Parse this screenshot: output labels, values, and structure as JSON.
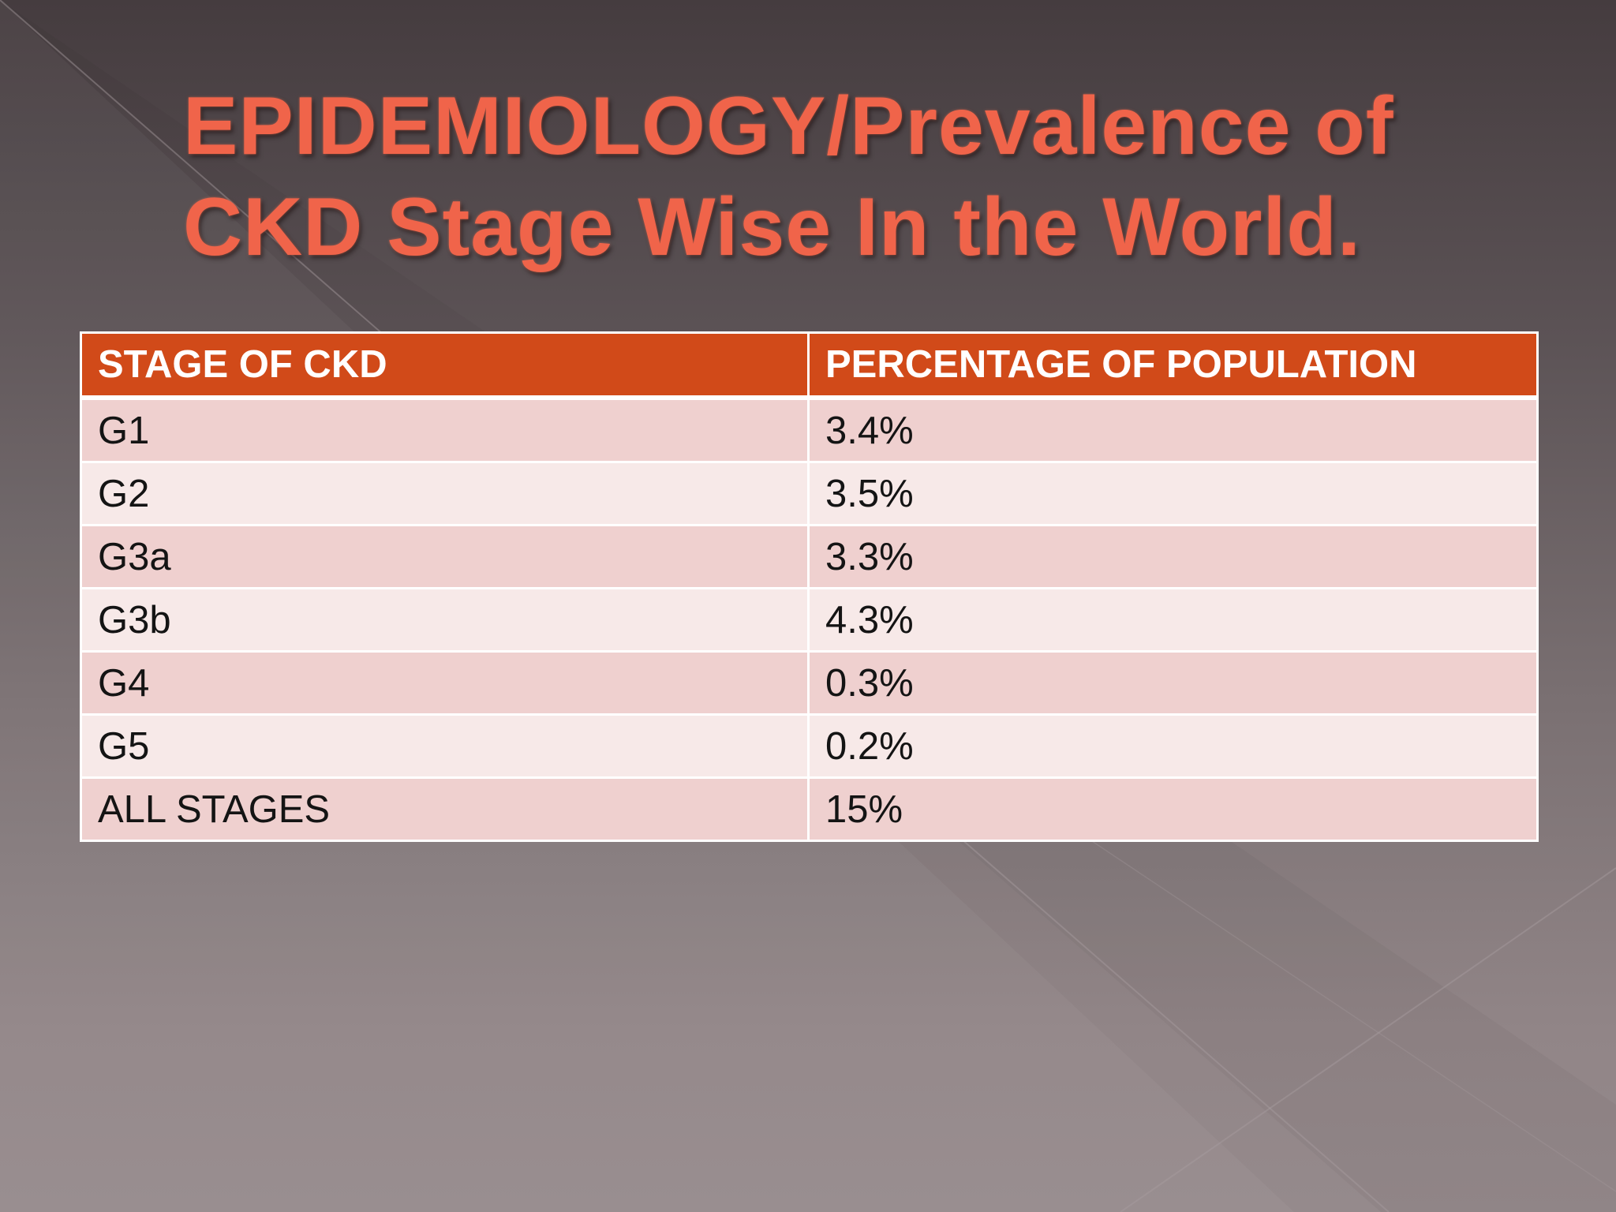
{
  "slide": {
    "title_line1": "EPIDEMIOLOGY/Prevalence of",
    "title_line2": "CKD Stage Wise In the World.",
    "colors": {
      "title": "#f0644a",
      "header_fill": "#d14a19",
      "row_odd_fill": "#efd0cf",
      "row_even_fill": "#f7e9e8"
    }
  },
  "table": {
    "headers": [
      "STAGE OF CKD",
      "PERCENTAGE OF POPULATION"
    ],
    "rows": [
      {
        "stage": "G1",
        "percentage": "3.4%"
      },
      {
        "stage": "G2",
        "percentage": "3.5%"
      },
      {
        "stage": "G3a",
        "percentage": "3.3%"
      },
      {
        "stage": "G3b",
        "percentage": "4.3%"
      },
      {
        "stage": "G4",
        "percentage": "0.3%"
      },
      {
        "stage": "G5",
        "percentage": "0.2%"
      },
      {
        "stage": "ALL STAGES",
        "percentage": "15%"
      }
    ]
  }
}
